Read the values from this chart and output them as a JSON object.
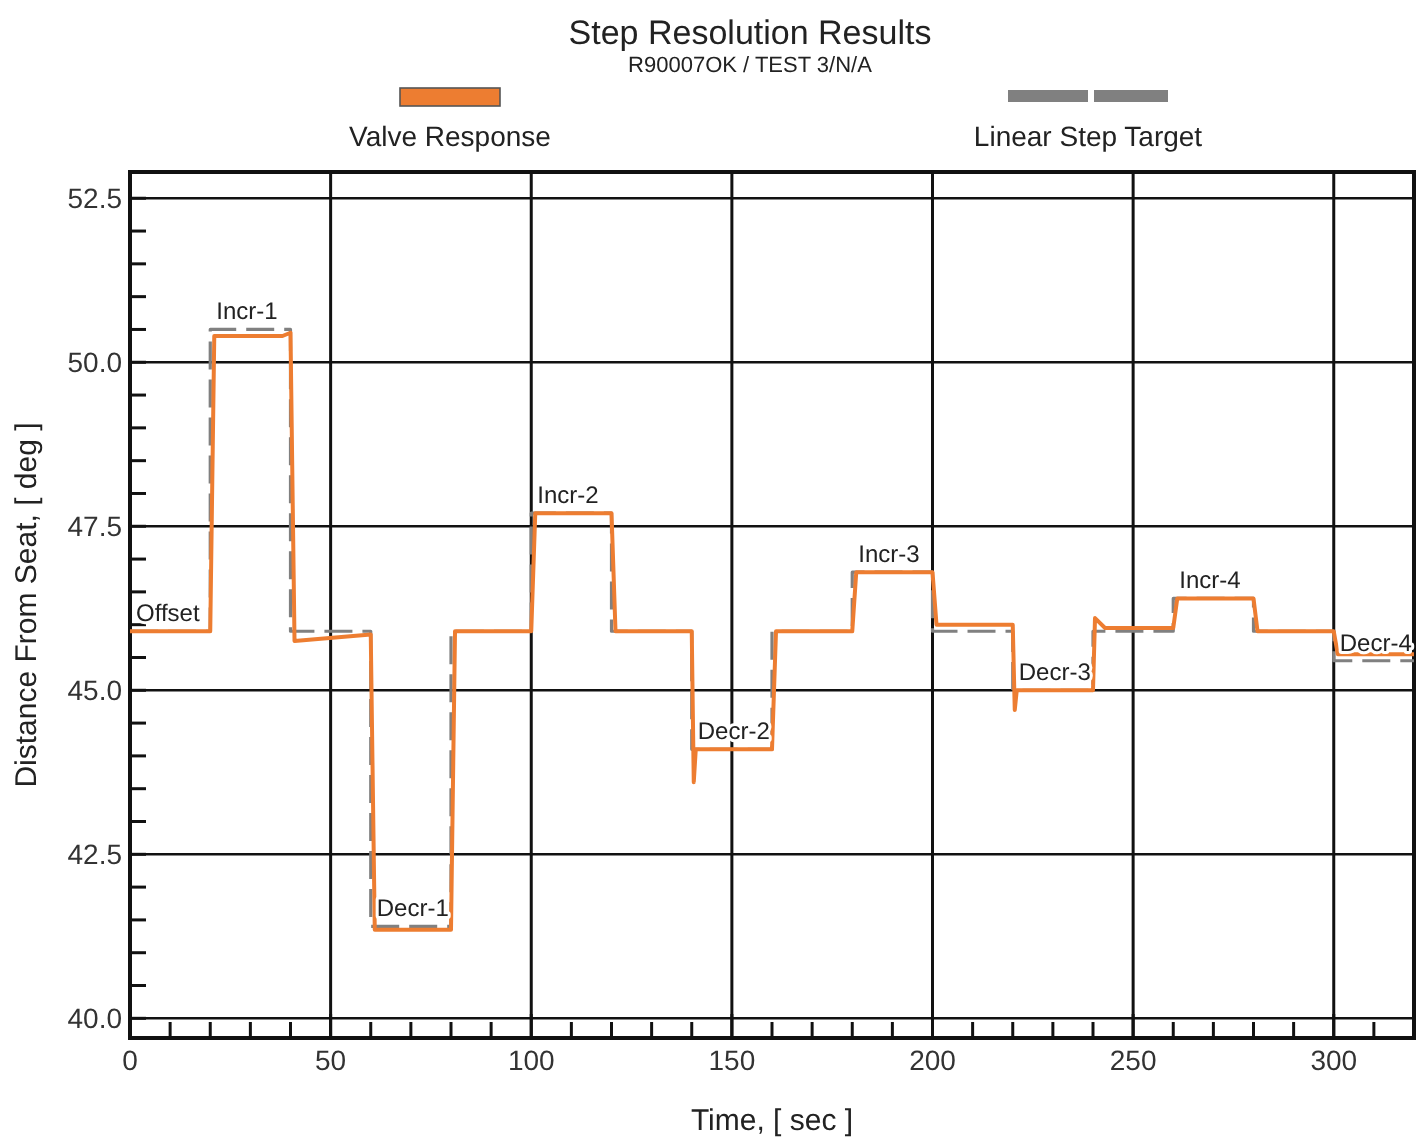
{
  "chart_data": {
    "type": "line",
    "title": "Step Resolution Results",
    "subtitle": "R90007OK / TEST 3/N/A",
    "xlabel": "Time, [ sec ]",
    "ylabel": "Distance From Seat, [ deg ]",
    "xlim": [
      0,
      320
    ],
    "ylim": [
      39.7,
      52.9
    ],
    "xticks": [
      0,
      {
        "value": 10,
        "label": null
      },
      {
        "value": 20,
        "label": null
      },
      {
        "value": 30,
        "label": null
      },
      {
        "value": 40,
        "label": null
      },
      50,
      {
        "value": 60,
        "label": null
      },
      {
        "value": 70,
        "label": null
      },
      {
        "value": 80,
        "label": null
      },
      {
        "value": 90,
        "label": null
      },
      100,
      {
        "value": 110,
        "label": null
      },
      {
        "value": 120,
        "label": null
      },
      {
        "value": 130,
        "label": null
      },
      {
        "value": 140,
        "label": null
      },
      150,
      {
        "value": 160,
        "label": null
      },
      {
        "value": 170,
        "label": null
      },
      {
        "value": 180,
        "label": null
      },
      {
        "value": 190,
        "label": null
      },
      200,
      {
        "value": 210,
        "label": null
      },
      {
        "value": 220,
        "label": null
      },
      {
        "value": 230,
        "label": null
      },
      {
        "value": 240,
        "label": null
      },
      250,
      {
        "value": 260,
        "label": null
      },
      {
        "value": 270,
        "label": null
      },
      {
        "value": 280,
        "label": null
      },
      {
        "value": 290,
        "label": null
      },
      300,
      {
        "value": 310,
        "label": null
      }
    ],
    "yticks": [
      {
        "value": 40,
        "label": "40.0"
      },
      {
        "value": 40.5,
        "label": null
      },
      {
        "value": 41,
        "label": null
      },
      {
        "value": 41.5,
        "label": null
      },
      {
        "value": 42,
        "label": null
      },
      {
        "value": 42.5,
        "label": "42.5"
      },
      {
        "value": 43,
        "label": null
      },
      {
        "value": 43.5,
        "label": null
      },
      {
        "value": 44,
        "label": null
      },
      {
        "value": 44.5,
        "label": null
      },
      {
        "value": 45,
        "label": "45.0"
      },
      {
        "value": 45.5,
        "label": null
      },
      {
        "value": 46,
        "label": null
      },
      {
        "value": 46.5,
        "label": null
      },
      {
        "value": 47,
        "label": null
      },
      {
        "value": 47.5,
        "label": "47.5"
      },
      {
        "value": 48,
        "label": null
      },
      {
        "value": 48.5,
        "label": null
      },
      {
        "value": 49,
        "label": null
      },
      {
        "value": 49.5,
        "label": null
      },
      {
        "value": 50,
        "label": "50.0"
      },
      {
        "value": 50.5,
        "label": null
      },
      {
        "value": 51,
        "label": null
      },
      {
        "value": 51.5,
        "label": null
      },
      {
        "value": 52,
        "label": null
      },
      {
        "value": 52.5,
        "label": "52.5"
      }
    ],
    "grid": true,
    "legend": "top",
    "marker": "none",
    "series": [
      {
        "name": "Valve Response",
        "color": "#ed7d31",
        "line_style": "solid",
        "x": [
          0,
          20,
          21,
          38,
          40,
          41,
          60,
          61,
          80,
          81,
          100,
          101,
          120,
          121,
          140,
          140.5,
          141,
          160,
          161,
          180,
          181,
          200,
          201,
          220,
          220.5,
          221,
          240,
          240.5,
          243,
          260,
          261,
          280,
          281,
          300,
          301,
          320
        ],
        "values": [
          45.9,
          45.9,
          50.4,
          50.4,
          50.45,
          45.75,
          45.85,
          41.35,
          41.35,
          45.9,
          45.9,
          47.7,
          47.7,
          45.9,
          45.9,
          43.6,
          44.1,
          44.1,
          45.9,
          45.9,
          46.8,
          46.8,
          46,
          46,
          44.7,
          45,
          45,
          46.1,
          45.95,
          45.95,
          46.4,
          46.4,
          45.9,
          45.9,
          45.55,
          45.55
        ]
      },
      {
        "name": "Linear Step Target",
        "type": "step",
        "color": "#808080",
        "line_style": "dashed",
        "x": [
          0,
          20,
          40,
          60,
          80,
          100,
          120,
          140,
          160,
          180,
          200,
          220,
          240,
          260,
          280,
          300,
          320
        ],
        "values": [
          45.9,
          50.5,
          45.9,
          41.4,
          45.9,
          47.7,
          45.9,
          44.1,
          45.9,
          46.8,
          45.9,
          45,
          45.9,
          46.4,
          45.9,
          45.45,
          45.45
        ]
      }
    ],
    "annotations": [
      {
        "text": "Offset",
        "x": 0,
        "y": 45.9
      },
      {
        "text": "Incr-1",
        "x": 20,
        "y": 50.5
      },
      {
        "text": "Decr-1",
        "x": 60,
        "y": 41.4
      },
      {
        "text": "Incr-2",
        "x": 100,
        "y": 47.7
      },
      {
        "text": "Decr-2",
        "x": 140,
        "y": 44.1
      },
      {
        "text": "Incr-3",
        "x": 180,
        "y": 46.8
      },
      {
        "text": "Decr-3",
        "x": 220,
        "y": 45
      },
      {
        "text": "Incr-4",
        "x": 260,
        "y": 46.4
      },
      {
        "text": "Decr-4",
        "x": 300,
        "y": 45.45
      }
    ]
  }
}
